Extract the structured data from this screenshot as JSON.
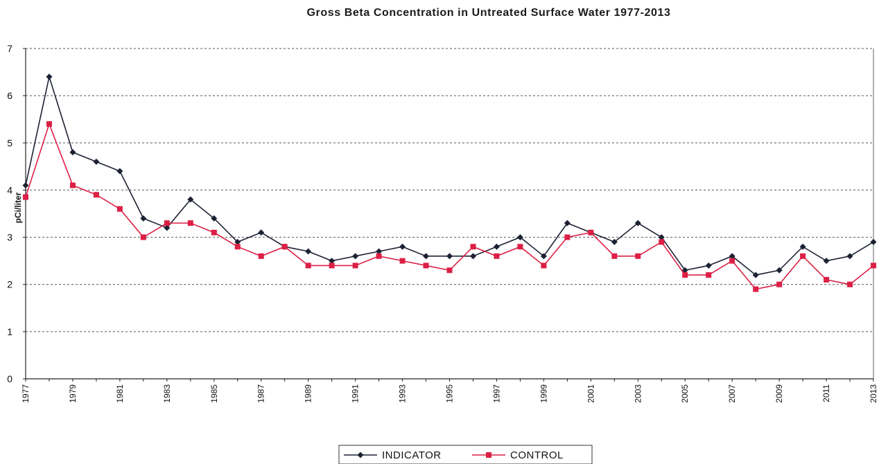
{
  "chart_data": {
    "type": "line",
    "title": "Gross Beta Concentration in Untreated Surface Water 1977-2013",
    "xlabel": "",
    "ylabel": "pCi/liter",
    "ylim": [
      0,
      7
    ],
    "yticks": [
      0,
      1,
      2,
      3,
      4,
      5,
      6,
      7
    ],
    "grid": "horizontal-dashed",
    "legend_position": "bottom-center",
    "x": [
      1977,
      1978,
      1979,
      1980,
      1981,
      1982,
      1983,
      1984,
      1985,
      1986,
      1987,
      1988,
      1989,
      1990,
      1991,
      1992,
      1993,
      1994,
      1995,
      1996,
      1997,
      1998,
      1999,
      2000,
      2001,
      2002,
      2003,
      2004,
      2005,
      2006,
      2007,
      2008,
      2009,
      2010,
      2011,
      2012,
      2013
    ],
    "xtick_labels": [
      "1977",
      "1979",
      "1981",
      "1983",
      "1985",
      "1987",
      "1989",
      "1991",
      "1993",
      "1995",
      "1997",
      "1999",
      "2001",
      "2003",
      "2005",
      "2007",
      "2009",
      "2011",
      "2013"
    ],
    "series": [
      {
        "name": "INDICATOR",
        "color": "#1c2233",
        "marker": "diamond",
        "values": [
          4.1,
          6.4,
          4.8,
          4.6,
          4.4,
          3.4,
          3.2,
          3.8,
          3.4,
          2.9,
          3.1,
          2.8,
          2.7,
          2.5,
          2.6,
          2.7,
          2.8,
          2.6,
          2.6,
          2.6,
          2.8,
          3.0,
          2.6,
          3.3,
          3.1,
          2.9,
          3.3,
          3.0,
          2.3,
          2.4,
          2.6,
          2.2,
          2.3,
          2.8,
          2.5,
          2.6,
          2.9
        ]
      },
      {
        "name": "CONTROL",
        "color": "#dc1f45",
        "marker": "square",
        "values": [
          3.85,
          5.4,
          4.1,
          3.9,
          3.6,
          3.0,
          3.3,
          3.3,
          3.1,
          2.8,
          2.6,
          2.8,
          2.4,
          2.4,
          2.4,
          2.6,
          2.5,
          2.4,
          2.3,
          2.8,
          2.6,
          2.8,
          2.4,
          3.0,
          3.1,
          2.6,
          2.6,
          2.9,
          2.2,
          2.2,
          2.5,
          1.9,
          2.0,
          2.6,
          2.1,
          2.0,
          2.4
        ]
      }
    ]
  }
}
